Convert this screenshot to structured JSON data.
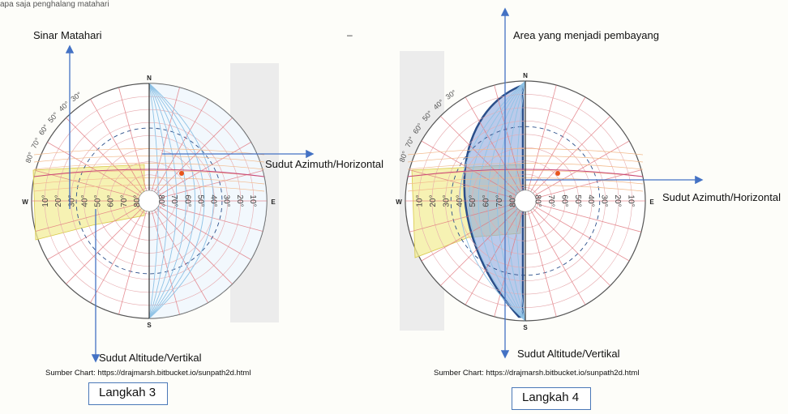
{
  "top_strip_text": "apa saja penghalang matahari",
  "dash": "–",
  "labels": {
    "sun_rays": "Sinar Matahari",
    "azimuth_left": "Sudut Azimuth/Horizontal",
    "altitude_left": "Sudut Altitude/Vertikal",
    "source_left": "Sumber Chart: https://drajmarsh.bitbucket.io/sunpath2d.html",
    "step3": "Langkah 3",
    "shading_area": "Area yang menjadi pembayang",
    "azimuth_right": "Sudut Azimuth/Horizontal",
    "altitude_right": "Sudut Altitude/Vertikal",
    "source_right": "Sumber Chart: https://drajmarsh.bitbucket.io/sunpath2d.html",
    "step4": "Langkah 4"
  },
  "compass": {
    "north": "N",
    "south": "S",
    "east": "E",
    "west": "W"
  },
  "altitude_ticks": [
    "10°",
    "20°",
    "30°",
    "40°",
    "50°",
    "60°",
    "70°",
    "80°"
  ],
  "colors": {
    "arrow": "#4472c4",
    "shade_blue": "#8ea6dc",
    "shade_yellow": "#f3ee9a",
    "red_line": "#e0737a",
    "blue_line": "#8fc3e6"
  }
}
